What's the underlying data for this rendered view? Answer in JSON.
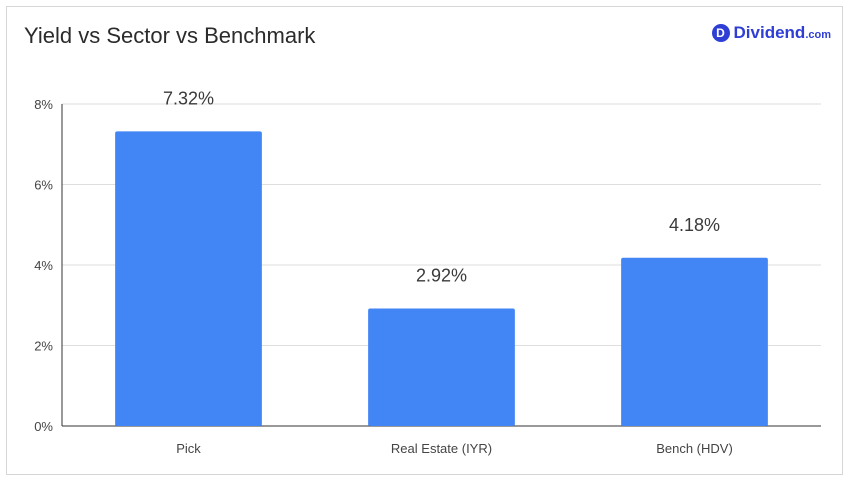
{
  "brand": {
    "badge": "D",
    "name": "Dividend",
    "suffix": ".com",
    "color": "#2f3fd6"
  },
  "chart_data": {
    "type": "bar",
    "title": "Yield vs Sector vs Benchmark",
    "categories": [
      "Pick",
      "Real Estate (IYR)",
      "Bench (HDV)"
    ],
    "values": [
      7.32,
      2.92,
      4.18
    ],
    "data_labels": [
      "7.32%",
      "2.92%",
      "4.18%"
    ],
    "ylim": [
      0,
      8
    ],
    "yticks": [
      0,
      2,
      4,
      6,
      8
    ],
    "ytick_labels": [
      "0%",
      "2%",
      "4%",
      "6%",
      "8%"
    ],
    "xlabel": "",
    "ylabel": "",
    "grid": true,
    "bar_color": "#4285f4"
  }
}
